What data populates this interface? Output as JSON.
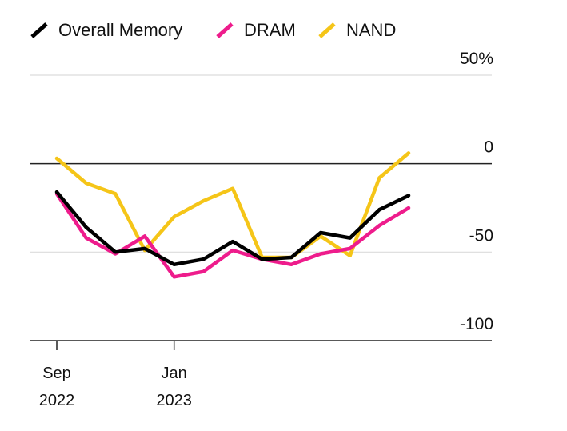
{
  "chart_data": {
    "type": "line",
    "x": [
      "Sep 2022",
      "Oct 2022",
      "Nov 2022",
      "Dec 2022",
      "Jan 2023",
      "Feb 2023",
      "Mar 2023",
      "Apr 2023",
      "May 2023",
      "Jun 2023",
      "Jul 2023",
      "Aug 2023",
      "Sep 2023"
    ],
    "x_ticks": [
      {
        "at": "Sep 2022",
        "month": "Sep",
        "year": "2022"
      },
      {
        "at": "Jan 2023",
        "month": "Jan",
        "year": "2023"
      }
    ],
    "series": [
      {
        "name": "Overall Memory",
        "color": "#000000",
        "values": [
          -16,
          -36,
          -50,
          -48,
          -57,
          -54,
          -44,
          -54,
          -53,
          -39,
          -42,
          -26,
          -18
        ]
      },
      {
        "name": "DRAM",
        "color": "#ee1c8c",
        "values": [
          -17,
          -42,
          -51,
          -41,
          -64,
          -61,
          -49,
          -54,
          -57,
          -51,
          -48,
          -35,
          -25
        ]
      },
      {
        "name": "NAND",
        "color": "#f5c518",
        "values": [
          3,
          -11,
          -17,
          -49,
          -30,
          -21,
          -14,
          -53,
          -53,
          -41,
          -52,
          -8,
          6
        ]
      }
    ],
    "ylim": [
      -100,
      50
    ],
    "y_ticks": [
      50,
      0,
      -50,
      -100
    ],
    "y_tick_labels": [
      "50%",
      "0",
      "-50",
      "-100"
    ],
    "legend_position": "top",
    "grid": true,
    "title": "",
    "xlabel": "",
    "ylabel": "",
    "colors": {
      "gridline": "#dcdcdc",
      "zero_line": "#222222",
      "axis": "#222222"
    }
  }
}
